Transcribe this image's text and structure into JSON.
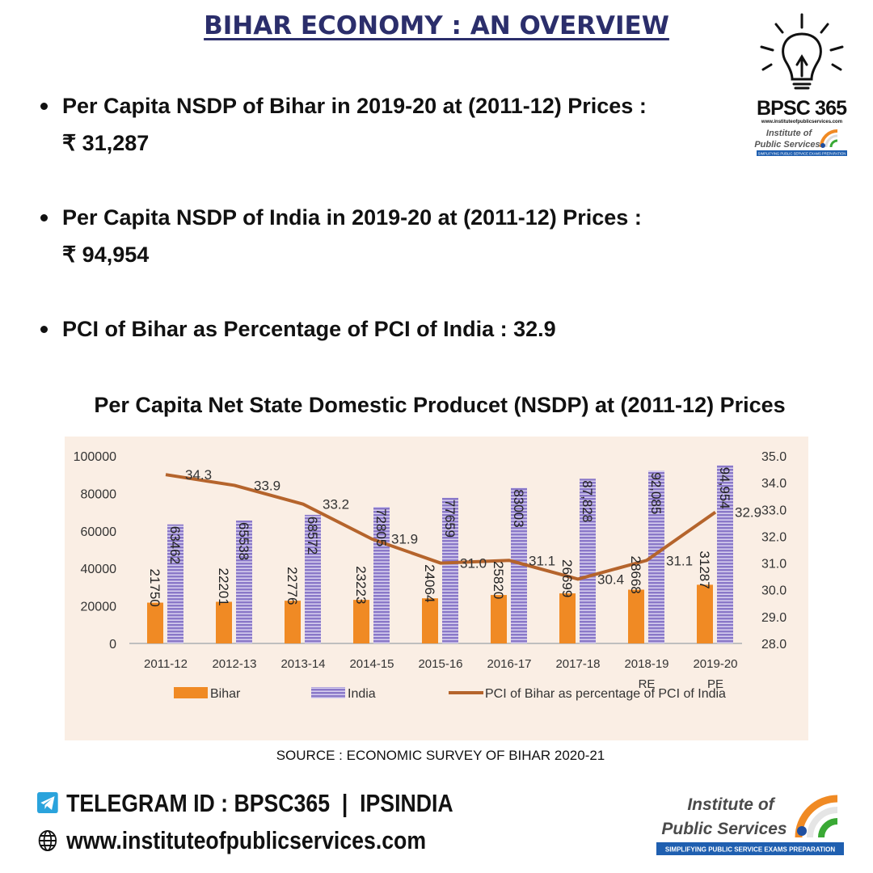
{
  "header": {
    "title": "BIHAR ECONOMY : AN OVERVIEW"
  },
  "bullets": [
    {
      "line1": "Per Capita NSDP of Bihar in 2019-20 at (2011-12) Prices :",
      "line2": "₹ 31,287"
    },
    {
      "line1": "Per Capita NSDP of India in 2019-20 at (2011-12) Prices :",
      "line2": "₹ 94,954"
    },
    {
      "line1": "PCI of Bihar as Percentage of PCI of India : 32.9"
    }
  ],
  "logo_top": {
    "brand": "BPSC 365",
    "url": "www.instituteofpublicservices.com",
    "name1": "Institute of",
    "name2": "Public Services",
    "tagline": "SIMPLIFYING PUBLIC SERVICE EXAMS PREPARATION"
  },
  "chart_data": {
    "type": "bar",
    "title": "Per Capita Net State Domestic Producet (NSDP) at (2011-12) Prices",
    "categories": [
      "2011-12",
      "2012-13",
      "2013-14",
      "2014-15",
      "2015-16",
      "2016-17",
      "2017-18",
      "2018-19",
      "2019-20"
    ],
    "category_sublabels": [
      "",
      "",
      "",
      "",
      "",
      "",
      "",
      "RE",
      "PE"
    ],
    "series": [
      {
        "name": "Bihar",
        "type": "bar",
        "axis": "left",
        "color": "#f08a24",
        "values": [
          21750,
          22201,
          22776,
          23223,
          24064,
          25820,
          26699,
          28668,
          31287
        ],
        "labels": [
          "21750",
          "22201",
          "22776",
          "23223",
          "24064",
          "25820",
          "26699",
          "28668",
          "31287"
        ]
      },
      {
        "name": "India",
        "type": "bar",
        "axis": "left",
        "color": "#8a78c8",
        "values": [
          63462,
          65538,
          68572,
          72805,
          77659,
          83003,
          87828,
          92085,
          94954
        ],
        "labels": [
          "63462",
          "65538",
          "68572",
          "72805",
          "77659",
          "83003",
          "87,828",
          "92,085",
          "94,954"
        ]
      },
      {
        "name": "PCI of Bihar as percentage of PCI of India",
        "type": "line",
        "axis": "right",
        "color": "#b5642c",
        "values": [
          34.3,
          33.9,
          33.2,
          31.9,
          31.0,
          31.1,
          30.4,
          31.1,
          32.9
        ],
        "labels": [
          "34.3",
          "33.9",
          "33.2",
          "31.9",
          "31.0",
          "31.1",
          "30.4",
          "31.1",
          "32.9"
        ]
      }
    ],
    "y_left": {
      "range": [
        0,
        100000
      ],
      "ticks": [
        "0",
        "20000",
        "40000",
        "60000",
        "80000",
        "100000"
      ]
    },
    "y_right": {
      "range": [
        28.0,
        35.0
      ],
      "ticks": [
        "28.0",
        "29.0",
        "30.0",
        "31.0",
        "32.0",
        "33.0",
        "34.0",
        "35.0"
      ]
    },
    "grid": false,
    "legend": "bottom",
    "background": "#faeee4"
  },
  "source": "SOURCE : ECONOMIC SURVEY OF BIHAR 2020-21",
  "footer": {
    "telegram": "TELEGRAM ID : BPSC365  |  IPSINDIA",
    "website": "www.instituteofpublicservices.com",
    "logo_name1": "Institute of",
    "logo_name2": "Public Services",
    "logo_tagline": "SIMPLIFYING PUBLIC SERVICE EXAMS PREPARATION"
  }
}
